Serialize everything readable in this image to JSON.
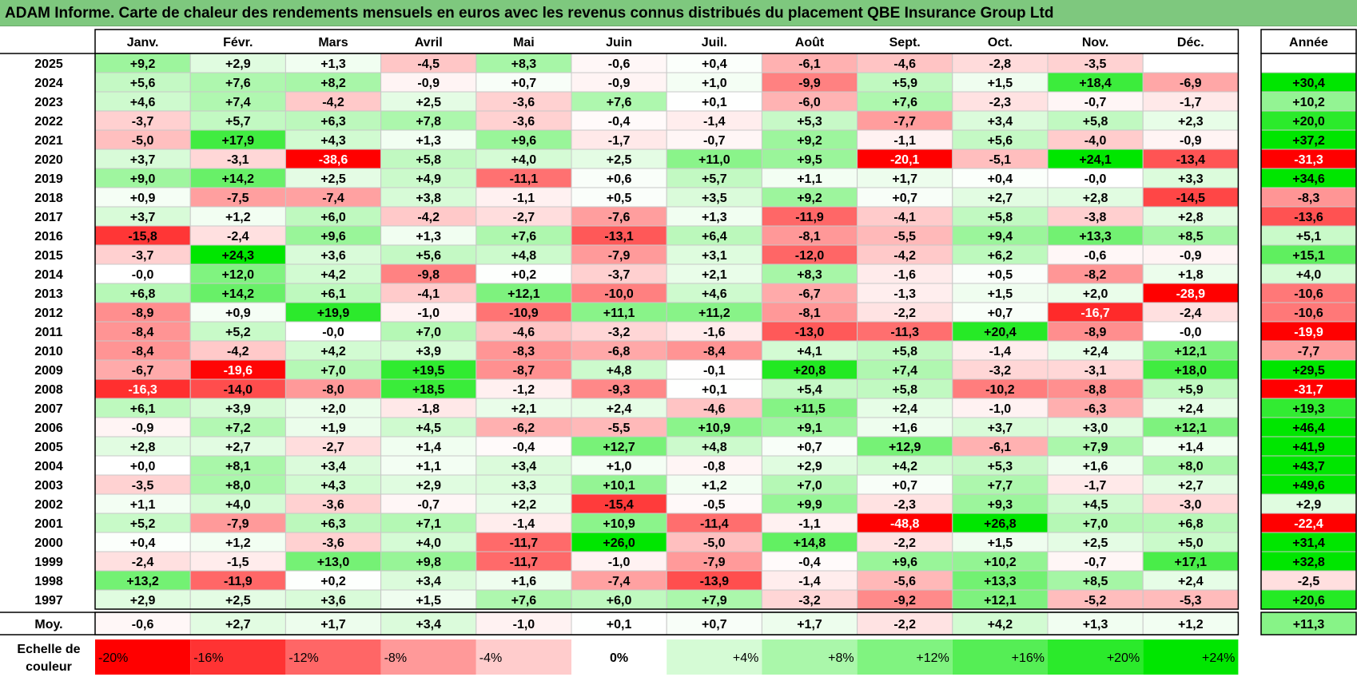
{
  "title": "ADAM Informe. Carte de chaleur des rendements mensuels en euros avec les revenus connus distribués du placement QBE Insurance Group Ltd",
  "chart_data": {
    "type": "heatmap",
    "months": [
      "Janv.",
      "Févr.",
      "Mars",
      "Avril",
      "Mai",
      "Juin",
      "Juil.",
      "Août",
      "Sept.",
      "Oct.",
      "Nov.",
      "Déc."
    ],
    "year_header": "Année",
    "average_label": "Moy.",
    "rows": [
      {
        "year": "2025",
        "values": [
          "+9,2",
          "+2,9",
          "+1,3",
          "-4,5",
          "+8,3",
          "-0,6",
          "+0,4",
          "-6,1",
          "-4,6",
          "-2,8",
          "-3,5",
          ""
        ],
        "annual": ""
      },
      {
        "year": "2024",
        "values": [
          "+5,6",
          "+7,6",
          "+8,2",
          "-0,9",
          "+0,7",
          "-0,9",
          "+1,0",
          "-9,9",
          "+5,9",
          "+1,5",
          "+18,4",
          "-6,9"
        ],
        "annual": "+30,4"
      },
      {
        "year": "2023",
        "values": [
          "+4,6",
          "+7,4",
          "-4,2",
          "+2,5",
          "-3,6",
          "+7,6",
          "+0,1",
          "-6,0",
          "+7,6",
          "-2,3",
          "-0,7",
          "-1,7"
        ],
        "annual": "+10,2"
      },
      {
        "year": "2022",
        "values": [
          "-3,7",
          "+5,7",
          "+6,3",
          "+7,8",
          "-3,6",
          "-0,4",
          "-1,4",
          "+5,3",
          "-7,7",
          "+3,4",
          "+5,8",
          "+2,3"
        ],
        "annual": "+20,0"
      },
      {
        "year": "2021",
        "values": [
          "-5,0",
          "+17,9",
          "+4,3",
          "+1,3",
          "+9,6",
          "-1,7",
          "-0,7",
          "+9,2",
          "-1,1",
          "+5,6",
          "-4,0",
          "-0,9"
        ],
        "annual": "+37,2"
      },
      {
        "year": "2020",
        "values": [
          "+3,7",
          "-3,1",
          "-38,6",
          "+5,8",
          "+4,0",
          "+2,5",
          "+11,0",
          "+9,5",
          "-20,1",
          "-5,1",
          "+24,1",
          "-13,4"
        ],
        "annual": "-31,3"
      },
      {
        "year": "2019",
        "values": [
          "+9,0",
          "+14,2",
          "+2,5",
          "+4,9",
          "-11,1",
          "+0,6",
          "+5,7",
          "+1,1",
          "+1,7",
          "+0,4",
          "-0,0",
          "+3,3"
        ],
        "annual": "+34,6"
      },
      {
        "year": "2018",
        "values": [
          "+0,9",
          "-7,5",
          "-7,4",
          "+3,8",
          "-1,1",
          "+0,5",
          "+3,5",
          "+9,2",
          "+0,7",
          "+2,7",
          "+2,8",
          "-14,5"
        ],
        "annual": "-8,3"
      },
      {
        "year": "2017",
        "values": [
          "+3,7",
          "+1,2",
          "+6,0",
          "-4,2",
          "-2,7",
          "-7,6",
          "+1,3",
          "-11,9",
          "-4,1",
          "+5,8",
          "-3,8",
          "+2,8"
        ],
        "annual": "-13,6"
      },
      {
        "year": "2016",
        "values": [
          "-15,8",
          "-2,4",
          "+9,6",
          "+1,3",
          "+7,6",
          "-13,1",
          "+6,4",
          "-8,1",
          "-5,5",
          "+9,4",
          "+13,3",
          "+8,5"
        ],
        "annual": "+5,1"
      },
      {
        "year": "2015",
        "values": [
          "-3,7",
          "+24,3",
          "+3,6",
          "+5,6",
          "+4,8",
          "-7,9",
          "+3,1",
          "-12,0",
          "-4,2",
          "+6,2",
          "-0,6",
          "-0,9"
        ],
        "annual": "+15,1"
      },
      {
        "year": "2014",
        "values": [
          "-0,0",
          "+12,0",
          "+4,2",
          "-9,8",
          "+0,2",
          "-3,7",
          "+2,1",
          "+8,3",
          "-1,6",
          "+0,5",
          "-8,2",
          "+1,8"
        ],
        "annual": "+4,0"
      },
      {
        "year": "2013",
        "values": [
          "+6,8",
          "+14,2",
          "+6,1",
          "-4,1",
          "+12,1",
          "-10,0",
          "+4,6",
          "-6,7",
          "-1,3",
          "+1,5",
          "+2,0",
          "-28,9"
        ],
        "annual": "-10,6"
      },
      {
        "year": "2012",
        "values": [
          "-8,9",
          "+0,9",
          "+19,9",
          "-1,0",
          "-10,9",
          "+11,1",
          "+11,2",
          "-8,1",
          "-2,2",
          "+0,7",
          "-16,7",
          "-2,4"
        ],
        "annual": "-10,6"
      },
      {
        "year": "2011",
        "values": [
          "-8,4",
          "+5,2",
          "-0,0",
          "+7,0",
          "-4,6",
          "-3,2",
          "-1,6",
          "-13,0",
          "-11,3",
          "+20,4",
          "-8,9",
          "-0,0"
        ],
        "annual": "-19,9"
      },
      {
        "year": "2010",
        "values": [
          "-8,4",
          "-4,2",
          "+4,2",
          "+3,9",
          "-8,3",
          "-6,8",
          "-8,4",
          "+4,1",
          "+5,8",
          "-1,4",
          "+2,4",
          "+12,1"
        ],
        "annual": "-7,7"
      },
      {
        "year": "2009",
        "values": [
          "-6,7",
          "-19,6",
          "+7,0",
          "+19,5",
          "-8,7",
          "+4,8",
          "-0,1",
          "+20,8",
          "+7,4",
          "-3,2",
          "-3,1",
          "+18,0"
        ],
        "annual": "+29,5"
      },
      {
        "year": "2008",
        "values": [
          "-16,3",
          "-14,0",
          "-8,0",
          "+18,5",
          "-1,2",
          "-9,3",
          "+0,1",
          "+5,4",
          "+5,8",
          "-10,2",
          "-8,8",
          "+5,9"
        ],
        "annual": "-31,7"
      },
      {
        "year": "2007",
        "values": [
          "+6,1",
          "+3,9",
          "+2,0",
          "-1,8",
          "+2,1",
          "+2,4",
          "-4,6",
          "+11,5",
          "+2,4",
          "-1,0",
          "-6,3",
          "+2,4"
        ],
        "annual": "+19,3"
      },
      {
        "year": "2006",
        "values": [
          "-0,9",
          "+7,2",
          "+1,9",
          "+4,5",
          "-6,2",
          "-5,5",
          "+10,9",
          "+9,1",
          "+1,6",
          "+3,7",
          "+3,0",
          "+12,1"
        ],
        "annual": "+46,4"
      },
      {
        "year": "2005",
        "values": [
          "+2,8",
          "+2,7",
          "-2,7",
          "+1,4",
          "-0,4",
          "+12,7",
          "+4,8",
          "+0,7",
          "+12,9",
          "-6,1",
          "+7,9",
          "+1,4"
        ],
        "annual": "+41,9"
      },
      {
        "year": "2004",
        "values": [
          "+0,0",
          "+8,1",
          "+3,4",
          "+1,1",
          "+3,4",
          "+1,0",
          "-0,8",
          "+2,9",
          "+4,2",
          "+5,3",
          "+1,6",
          "+8,0"
        ],
        "annual": "+43,7"
      },
      {
        "year": "2003",
        "values": [
          "-3,5",
          "+8,0",
          "+4,3",
          "+2,9",
          "+3,3",
          "+10,1",
          "+1,2",
          "+7,0",
          "+0,7",
          "+7,7",
          "-1,7",
          "+2,7"
        ],
        "annual": "+49,6"
      },
      {
        "year": "2002",
        "values": [
          "+1,1",
          "+4,0",
          "-3,6",
          "-0,7",
          "+2,2",
          "-15,4",
          "-0,5",
          "+9,9",
          "-2,3",
          "+9,3",
          "+4,5",
          "-3,0"
        ],
        "annual": "+2,9"
      },
      {
        "year": "2001",
        "values": [
          "+5,2",
          "-7,9",
          "+6,3",
          "+7,1",
          "-1,4",
          "+10,9",
          "-11,4",
          "-1,1",
          "-48,8",
          "+26,8",
          "+7,0",
          "+6,8"
        ],
        "annual": "-22,4"
      },
      {
        "year": "2000",
        "values": [
          "+0,4",
          "+1,2",
          "-3,6",
          "+4,0",
          "-11,7",
          "+26,0",
          "-5,0",
          "+14,8",
          "-2,2",
          "+1,5",
          "+2,5",
          "+5,0"
        ],
        "annual": "+31,4"
      },
      {
        "year": "1999",
        "values": [
          "-2,4",
          "-1,5",
          "+13,0",
          "+9,8",
          "-11,7",
          "-1,0",
          "-7,9",
          "-0,4",
          "+9,6",
          "+10,2",
          "-0,7",
          "+17,1"
        ],
        "annual": "+32,8"
      },
      {
        "year": "1998",
        "values": [
          "+13,2",
          "-11,9",
          "+0,2",
          "+3,4",
          "+1,6",
          "-7,4",
          "-13,9",
          "-1,4",
          "-5,6",
          "+13,3",
          "+8,5",
          "+2,4"
        ],
        "annual": "-2,5"
      },
      {
        "year": "1997",
        "values": [
          "+2,9",
          "+2,5",
          "+3,6",
          "+1,5",
          "+7,6",
          "+6,0",
          "+7,9",
          "-3,2",
          "-9,2",
          "+12,1",
          "-5,2",
          "-5,3"
        ],
        "annual": "+20,6"
      }
    ],
    "average": {
      "values": [
        "-0,6",
        "+2,7",
        "+1,7",
        "+3,4",
        "-1,0",
        "+0,1",
        "+0,7",
        "+1,7",
        "-2,2",
        "+4,2",
        "+1,3",
        "+1,2"
      ],
      "annual": "+11,3"
    },
    "scale_label_line1": "Echelle de",
    "scale_label_line2": "couleur",
    "scale": [
      {
        "label": "-20%",
        "value": -20
      },
      {
        "label": "-16%",
        "value": -16
      },
      {
        "label": "-12%",
        "value": -12
      },
      {
        "label": "-8%",
        "value": -8
      },
      {
        "label": "-4%",
        "value": -4
      },
      {
        "label": "0%",
        "value": 0
      },
      {
        "label": "+4%",
        "value": 4
      },
      {
        "label": "+8%",
        "value": 8
      },
      {
        "label": "+12%",
        "value": 12
      },
      {
        "label": "+16%",
        "value": 16
      },
      {
        "label": "+20%",
        "value": 20
      },
      {
        "label": "+24%",
        "value": 24
      }
    ],
    "colors": {
      "negative_max": "#ff0000",
      "positive_max": "#00e600",
      "neutral": "#ffffff",
      "title_bar": "#7ec87e"
    }
  }
}
